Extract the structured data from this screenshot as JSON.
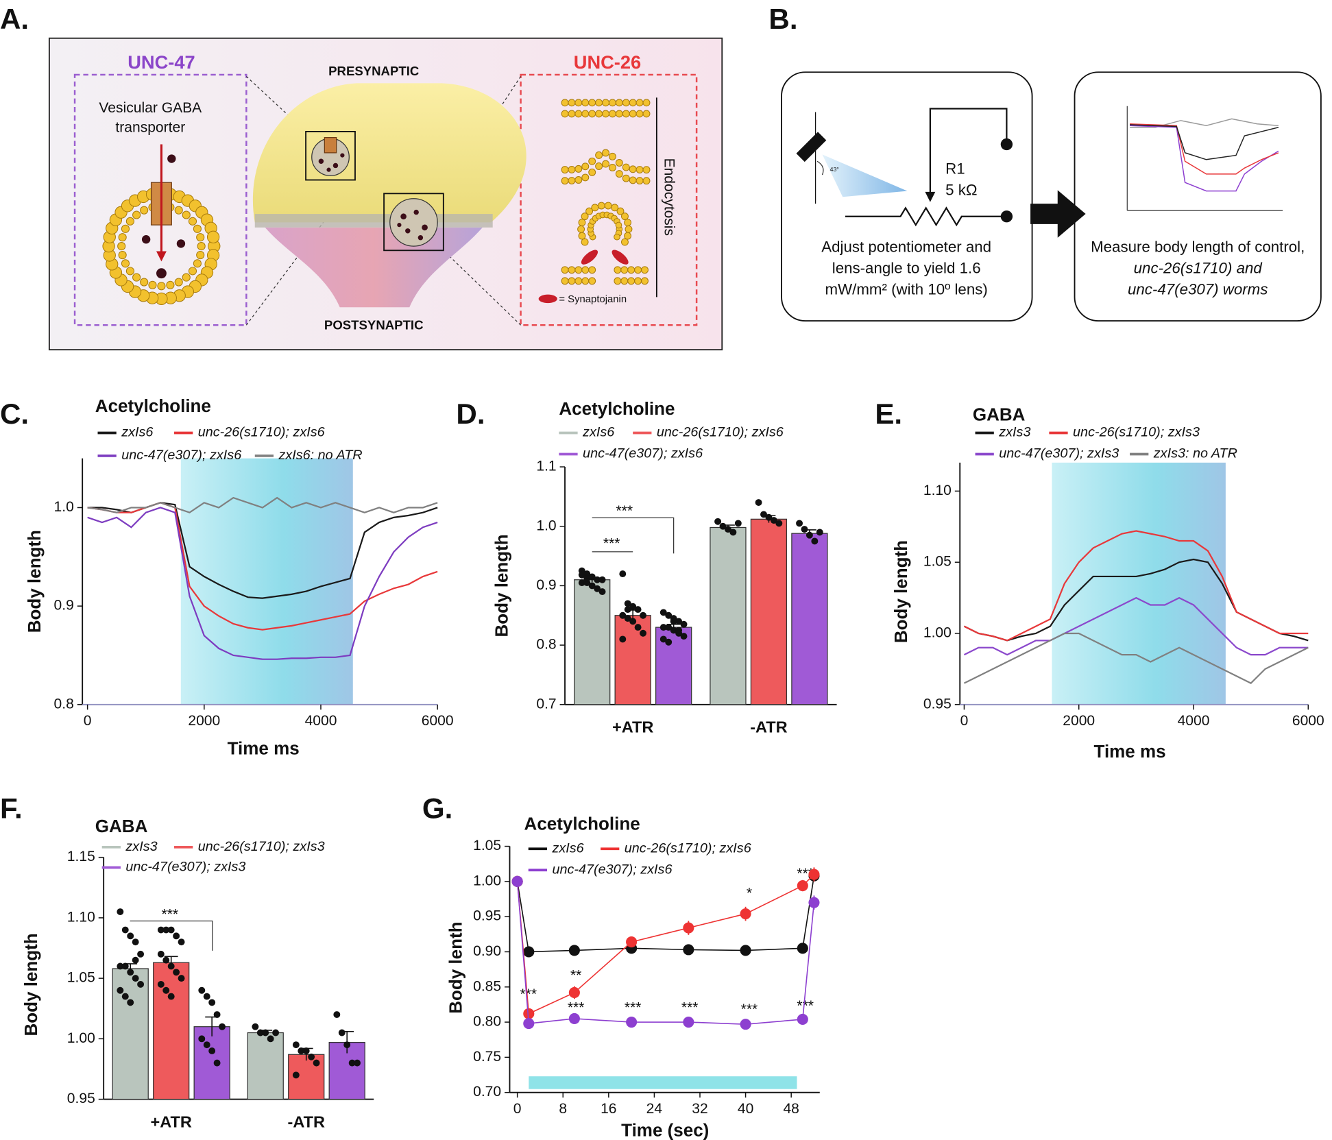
{
  "panel_labels": [
    "A.",
    "B.",
    "C.",
    "D.",
    "E.",
    "F.",
    "G."
  ],
  "panel_a": {
    "left_title": "UNC-47",
    "left_label": [
      "Vesicular GABA",
      "transporter"
    ],
    "top_label": "PRESYNAPTIC",
    "bottom_label": "POSTSYNAPTIC",
    "right_title": "UNC-26",
    "process_label": "Endocytosis",
    "legend_label": "= Synaptojanin"
  },
  "panel_b": {
    "angle_label": "43°",
    "resistor_name": "R1",
    "resistor_value": "5 kΩ",
    "left_caption": [
      "Adjust potentiometer and",
      "lens-angle to yield 1.6",
      "mW/mm² (with 10º lens)"
    ],
    "right_caption": [
      "Measure body length of control,",
      "unc-26(s1710) and",
      "unc-47(e307) worms"
    ]
  },
  "chart_data": [
    {
      "type": "line",
      "title": "Acetylcholine",
      "x_label": "Time ms",
      "y_label": "Body length",
      "x": [
        0,
        250,
        500,
        750,
        1000,
        1250,
        1500,
        1750,
        2000,
        2250,
        2500,
        2750,
        3000,
        3250,
        3500,
        3750,
        4000,
        4250,
        4500,
        4750,
        5000,
        5250,
        5500,
        5750,
        6000
      ],
      "xlim": [
        0,
        6000
      ],
      "xticks": [
        0,
        2000,
        4000,
        6000
      ],
      "ylim": [
        0.8,
        1.05
      ],
      "yticks": [
        0.8,
        0.9,
        {
          "value": 1,
          "label": "1.0"
        }
      ],
      "stimulus": [
        1600,
        4550
      ],
      "series": [
        {
          "name": "zxIs6",
          "color": "#1a1a1a",
          "values": [
            1.0,
            1.0,
            0.998,
            0.995,
            1.0,
            1.005,
            1.003,
            0.94,
            0.93,
            0.922,
            0.915,
            0.909,
            0.908,
            0.91,
            0.912,
            0.915,
            0.92,
            0.924,
            0.928,
            0.975,
            0.985,
            0.99,
            0.992,
            0.995,
            1.0
          ]
        },
        {
          "name": "unc-26(s1710); zxIs6",
          "color": "#e8383a",
          "values": [
            1.0,
            0.998,
            0.995,
            0.995,
            1.0,
            1.005,
            1.0,
            0.92,
            0.9,
            0.89,
            0.882,
            0.878,
            0.876,
            0.878,
            0.88,
            0.883,
            0.886,
            0.889,
            0.892,
            0.905,
            0.912,
            0.918,
            0.922,
            0.93,
            0.935
          ]
        },
        {
          "name": "unc-47(e307); zxIs6",
          "color": "#7d3cc0",
          "values": [
            0.99,
            0.985,
            0.99,
            0.98,
            0.995,
            1.0,
            0.995,
            0.91,
            0.87,
            0.857,
            0.85,
            0.848,
            0.846,
            0.846,
            0.847,
            0.847,
            0.848,
            0.848,
            0.85,
            0.9,
            0.93,
            0.955,
            0.97,
            0.98,
            0.985
          ]
        },
        {
          "name": "zxIs6: no ATR",
          "color": "#808080",
          "values": [
            1.0,
            0.998,
            0.995,
            1.0,
            1.0,
            1.005,
            1.0,
            0.995,
            1.005,
            1.0,
            1.01,
            1.005,
            1.0,
            1.01,
            1.0,
            1.005,
            1.0,
            1.005,
            1.0,
            0.995,
            1.0,
            0.995,
            1.0,
            1.0,
            1.005
          ]
        }
      ]
    },
    {
      "type": "bar",
      "title": "Acetylcholine",
      "y_label": "Body length",
      "categories": [
        "+ATR",
        "-ATR"
      ],
      "ylim": [
        0.7,
        1.1
      ],
      "yticks": [
        0.7,
        0.8,
        0.9,
        {
          "value": 1,
          "label": "1.0"
        },
        1.1
      ],
      "annotations": [
        "***",
        "***"
      ],
      "series": [
        {
          "name": "zxIs6",
          "color": "#b9c5bd",
          "values": [
            0.91,
            0.998
          ],
          "errors": [
            0.004,
            0.004
          ],
          "points": [
            [
              0.925,
              0.92,
              0.915,
              0.91,
              0.91,
              0.905,
              0.905,
              0.9,
              0.895,
              0.89,
              0.918,
              0.912
            ],
            [
              1.008,
              1.0,
              0.995,
              0.99,
              1.005
            ]
          ]
        },
        {
          "name": "unc-26(s1710); zxIs6",
          "color": "#ee5a5c",
          "values": [
            0.85,
            1.012
          ],
          "errors": [
            0.009,
            0.006
          ],
          "points": [
            [
              0.92,
              0.87,
              0.865,
              0.86,
              0.85,
              0.85,
              0.845,
              0.84,
              0.83,
              0.82,
              0.81,
              0.86
            ],
            [
              1.04,
              1.02,
              1.015,
              1.01,
              1.005
            ]
          ]
        },
        {
          "name": "unc-47(e307); zxIs6",
          "color": "#a05ad6",
          "values": [
            0.83,
            0.988
          ],
          "errors": [
            0.005,
            0.006
          ],
          "points": [
            [
              0.855,
              0.85,
              0.845,
              0.84,
              0.835,
              0.83,
              0.83,
              0.825,
              0.82,
              0.815,
              0.81,
              0.805,
              0.84,
              0.825
            ],
            [
              1.005,
              0.995,
              0.985,
              0.975,
              0.99
            ]
          ]
        }
      ]
    },
    {
      "type": "line",
      "title": "GABA",
      "x_label": "Time ms",
      "y_label": "Body length",
      "x": [
        0,
        250,
        500,
        750,
        1000,
        1250,
        1500,
        1750,
        2000,
        2250,
        2500,
        2750,
        3000,
        3250,
        3500,
        3750,
        4000,
        4250,
        4500,
        4750,
        5000,
        5250,
        5500,
        5750,
        6000
      ],
      "xlim": [
        0,
        6000
      ],
      "xticks": [
        0,
        2000,
        4000,
        6000
      ],
      "ylim": [
        0.95,
        1.12
      ],
      "yticks": [
        0.95,
        {
          "value": 1,
          "label": "1.00"
        },
        1.05,
        {
          "value": 1.1,
          "label": "1.10"
        }
      ],
      "stimulus": [
        1530,
        4560
      ],
      "series": [
        {
          "name": "zxIs3",
          "color": "#1a1a1a",
          "values": [
            1.005,
            1.0,
            0.998,
            0.995,
            0.998,
            1.0,
            1.005,
            1.02,
            1.03,
            1.04,
            1.04,
            1.04,
            1.04,
            1.042,
            1.045,
            1.05,
            1.052,
            1.05,
            1.035,
            1.015,
            1.01,
            1.005,
            1.0,
            0.998,
            0.995
          ]
        },
        {
          "name": "unc-26(s1710); zxIs3",
          "color": "#e8383a",
          "values": [
            1.005,
            1.0,
            0.998,
            0.995,
            1.0,
            1.005,
            1.01,
            1.035,
            1.05,
            1.06,
            1.065,
            1.07,
            1.072,
            1.07,
            1.068,
            1.065,
            1.065,
            1.058,
            1.04,
            1.015,
            1.01,
            1.005,
            1.0,
            1.0,
            1.0
          ]
        },
        {
          "name": "unc-47(e307); zxIs3",
          "color": "#8b48cc",
          "values": [
            0.985,
            0.99,
            0.99,
            0.985,
            0.99,
            0.995,
            0.995,
            1.0,
            1.005,
            1.01,
            1.015,
            1.02,
            1.025,
            1.02,
            1.02,
            1.025,
            1.02,
            1.01,
            1.0,
            0.99,
            0.985,
            0.985,
            0.99,
            0.99,
            0.99
          ]
        },
        {
          "name": "zxIs3: no ATR",
          "color": "#808080",
          "values": [
            0.965,
            0.97,
            0.975,
            0.98,
            0.985,
            0.99,
            0.995,
            1.0,
            1.0,
            0.995,
            0.99,
            0.985,
            0.985,
            0.98,
            0.985,
            0.99,
            0.985,
            0.98,
            0.975,
            0.97,
            0.965,
            0.975,
            0.98,
            0.985,
            0.99
          ]
        }
      ]
    },
    {
      "type": "bar",
      "title": "GABA",
      "y_label": "Body length",
      "categories": [
        "+ATR",
        "-ATR"
      ],
      "ylim": [
        0.95,
        1.15
      ],
      "yticks": [
        0.95,
        {
          "value": 1,
          "label": "1.00"
        },
        1.05,
        {
          "value": 1.1,
          "label": "1.10"
        },
        1.15
      ],
      "annotations": [
        "***"
      ],
      "series": [
        {
          "name": "zxIs3",
          "color": "#b9c5bd",
          "values": [
            1.058,
            1.005
          ],
          "errors": [
            0.004,
            0.002
          ],
          "points": [
            [
              1.105,
              1.09,
              1.085,
              1.08,
              1.07,
              1.06,
              1.06,
              1.055,
              1.05,
              1.045,
              1.04,
              1.035,
              1.03,
              1.065
            ],
            [
              1.01,
              1.005,
              1.005,
              1.0,
              1.005
            ]
          ]
        },
        {
          "name": "unc-26(s1710); zxIs3",
          "color": "#ee5a5c",
          "values": [
            1.063,
            0.987
          ],
          "errors": [
            0.005,
            0.005
          ],
          "points": [
            [
              1.09,
              1.09,
              1.09,
              1.085,
              1.08,
              1.07,
              1.065,
              1.06,
              1.055,
              1.05,
              1.045,
              1.04,
              1.035
            ],
            [
              0.995,
              0.99,
              0.99,
              0.985,
              0.98,
              0.97
            ]
          ]
        },
        {
          "name": "unc-47(e307); zxIs3",
          "color": "#a05ad6",
          "values": [
            1.01,
            0.997
          ],
          "errors": [
            0.008,
            0.009
          ],
          "points": [
            [
              1.04,
              1.035,
              1.03,
              1.02,
              1.01,
              1.0,
              0.995,
              0.99,
              0.98
            ],
            [
              1.02,
              1.005,
              0.995,
              0.98,
              0.98
            ]
          ]
        }
      ]
    },
    {
      "type": "line",
      "title": "Acetylcholine",
      "x_label": "Time (sec)",
      "y_label": "Body lenth",
      "markers": true,
      "x": [
        0,
        2,
        10,
        20,
        30,
        40,
        50,
        52
      ],
      "xlim": [
        0,
        53
      ],
      "xticks": [
        0,
        8,
        16,
        24,
        32,
        40,
        48
      ],
      "ylim": [
        0.7,
        1.05
      ],
      "yticks": [
        {
          "value": 0.7,
          "label": "0.70"
        },
        0.75,
        {
          "value": 0.8,
          "label": "0.80"
        },
        0.85,
        {
          "value": 0.9,
          "label": "0.90"
        },
        0.95,
        {
          "value": 1,
          "label": "1.00"
        },
        1.05
      ],
      "stimulus": [
        2,
        49
      ],
      "annotations": [
        "***",
        "**",
        "*",
        "***",
        "***",
        "***",
        "***",
        "***",
        "***"
      ],
      "series": [
        {
          "name": "zxIs6",
          "color": "#111111",
          "values": [
            1.0,
            0.9,
            0.902,
            0.905,
            0.903,
            0.902,
            0.905,
            1.008
          ],
          "errors": [
            0.003,
            0.005,
            0.003,
            0.004,
            0.003,
            0.003,
            0.004,
            0.006
          ]
        },
        {
          "name": "unc-26(s1710); zxIs6",
          "color": "#ee3333",
          "values": [
            1.0,
            0.812,
            0.842,
            0.914,
            0.934,
            0.954,
            0.994,
            1.01
          ],
          "errors": [
            0.003,
            0.007,
            0.009,
            0.007,
            0.01,
            0.01,
            0.008,
            0.01
          ]
        },
        {
          "name": "unc-47(e307); zxIs6",
          "color": "#8d3fd0",
          "values": [
            1.0,
            0.798,
            0.805,
            0.8,
            0.8,
            0.797,
            0.804,
            0.97
          ],
          "errors": [
            0.003,
            0.007,
            0.007,
            0.007,
            0.007,
            0.005,
            0.007,
            0.01
          ]
        }
      ]
    }
  ]
}
